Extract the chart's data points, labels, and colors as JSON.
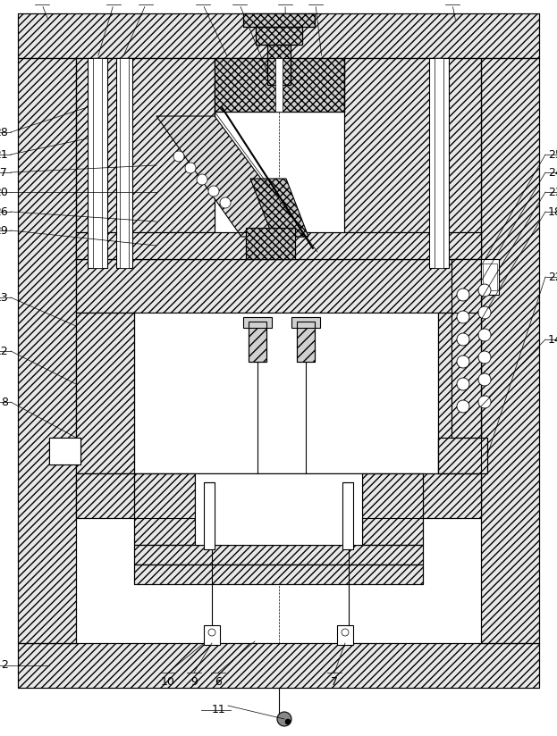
{
  "figsize": [
    6.23,
    8.24
  ],
  "dpi": 100,
  "bg_color": "#ffffff",
  "lw": 0.8,
  "hatch_lw": 0.4,
  "top_labels": {
    "27": 0.075,
    "19": 0.205,
    "16": 0.255,
    "3": 0.36,
    "4": 0.43,
    "15": 0.51,
    "5": 0.565,
    "1": 0.81
  },
  "left_labels": {
    "28": 0.785,
    "21": 0.755,
    "17": 0.72,
    "20": 0.69,
    "26": 0.66,
    "29": 0.628,
    "13": 0.568,
    "12": 0.49,
    "8": 0.432
  },
  "right_labels": {
    "25": 0.77,
    "24": 0.745,
    "23": 0.718,
    "18": 0.692,
    "14": 0.58,
    "22": 0.5
  },
  "bottom_labels": {
    "2": 0.057,
    "10": 0.302,
    "9": 0.348,
    "6": 0.393,
    "7": 0.59
  }
}
